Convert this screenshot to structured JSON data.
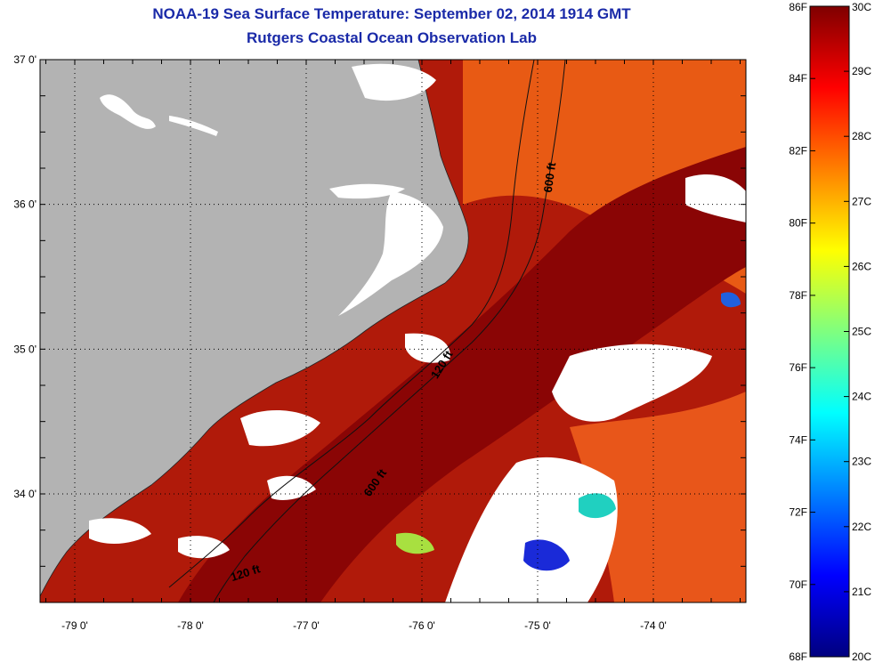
{
  "title": "NOAA-19 Sea Surface Temperature:  September 02, 2014 1914 GMT",
  "subtitle": "Rutgers Coastal Ocean Observation Lab",
  "map": {
    "lat_labels": [
      "37 0'",
      "36 0'",
      "35 0'",
      "34 0'"
    ],
    "lon_labels": [
      "-79 0'",
      "-78 0'",
      "-77 0'",
      "-76 0'",
      "-75 0'",
      "-74 0'"
    ],
    "lat_values": [
      37,
      36,
      35,
      34
    ],
    "lon_values": [
      -79,
      -78,
      -77,
      -76,
      -75,
      -74
    ],
    "lat_range": [
      33.25,
      37.0
    ],
    "lon_range": [
      -79.3,
      -73.2
    ],
    "grid": "dotted",
    "land_color": "#b3b3b3",
    "cloud_color": "#ffffff",
    "contours": [
      {
        "label": "600 ft",
        "depth_ft": 600
      },
      {
        "label": "120 ft",
        "depth_ft": 120
      },
      {
        "label": "600 ft",
        "depth_ft": 600
      },
      {
        "label": "120 ft",
        "depth_ft": 120
      }
    ]
  },
  "colorbar": {
    "fahrenheit_labels": [
      "86F",
      "84F",
      "82F",
      "80F",
      "78F",
      "76F",
      "74F",
      "72F",
      "70F",
      "68F"
    ],
    "celsius_labels": [
      "30C",
      "29C",
      "28C",
      "27C",
      "26C",
      "25C",
      "24C",
      "23C",
      "22C",
      "21C",
      "20C"
    ],
    "range_c": [
      20,
      30
    ],
    "range_f": [
      68,
      86
    ],
    "colors": [
      "#00007f",
      "#0000ff",
      "#007fff",
      "#00ffff",
      "#7fff7f",
      "#ffff00",
      "#ff7f00",
      "#ff0000",
      "#7f0000"
    ]
  }
}
